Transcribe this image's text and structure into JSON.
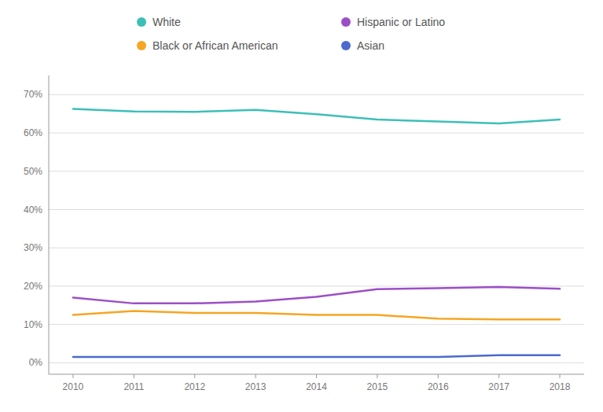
{
  "chart_data": {
    "type": "line",
    "x": [
      2010,
      2011,
      2012,
      2013,
      2014,
      2015,
      2016,
      2017,
      2018
    ],
    "series": [
      {
        "name": "White",
        "color": "#3dbfb8",
        "values": [
          66.3,
          65.6,
          65.5,
          66.0,
          64.9,
          63.5,
          63.0,
          62.5,
          63.5
        ]
      },
      {
        "name": "Hispanic or Latino",
        "color": "#9b4fc7",
        "values": [
          17.0,
          15.5,
          15.5,
          16.0,
          17.2,
          19.2,
          19.5,
          19.8,
          19.3
        ]
      },
      {
        "name": "Black or African American",
        "color": "#f5a623",
        "values": [
          12.5,
          13.5,
          13.0,
          13.0,
          12.5,
          12.5,
          11.5,
          11.3,
          11.3
        ]
      },
      {
        "name": "Asian",
        "color": "#4a6bcc",
        "values": [
          1.5,
          1.5,
          1.5,
          1.5,
          1.5,
          1.5,
          1.5,
          2.0,
          2.0
        ]
      }
    ],
    "xlim": [
      2009.6,
      2018.4
    ],
    "xticks": [
      2010,
      2011,
      2012,
      2013,
      2014,
      2015,
      2016,
      2017,
      2018
    ],
    "ylim": [
      -3,
      75
    ],
    "yticks": [
      {
        "value": 0,
        "label": "0%"
      },
      {
        "value": 10,
        "label": "10%"
      },
      {
        "value": 20,
        "label": "20%"
      },
      {
        "value": 30,
        "label": "30%"
      },
      {
        "value": 40,
        "label": "40%"
      },
      {
        "value": 50,
        "label": "50%"
      },
      {
        "value": 60,
        "label": "60%"
      },
      {
        "value": 70,
        "label": "70%"
      }
    ],
    "grid": true,
    "legend": "top"
  }
}
